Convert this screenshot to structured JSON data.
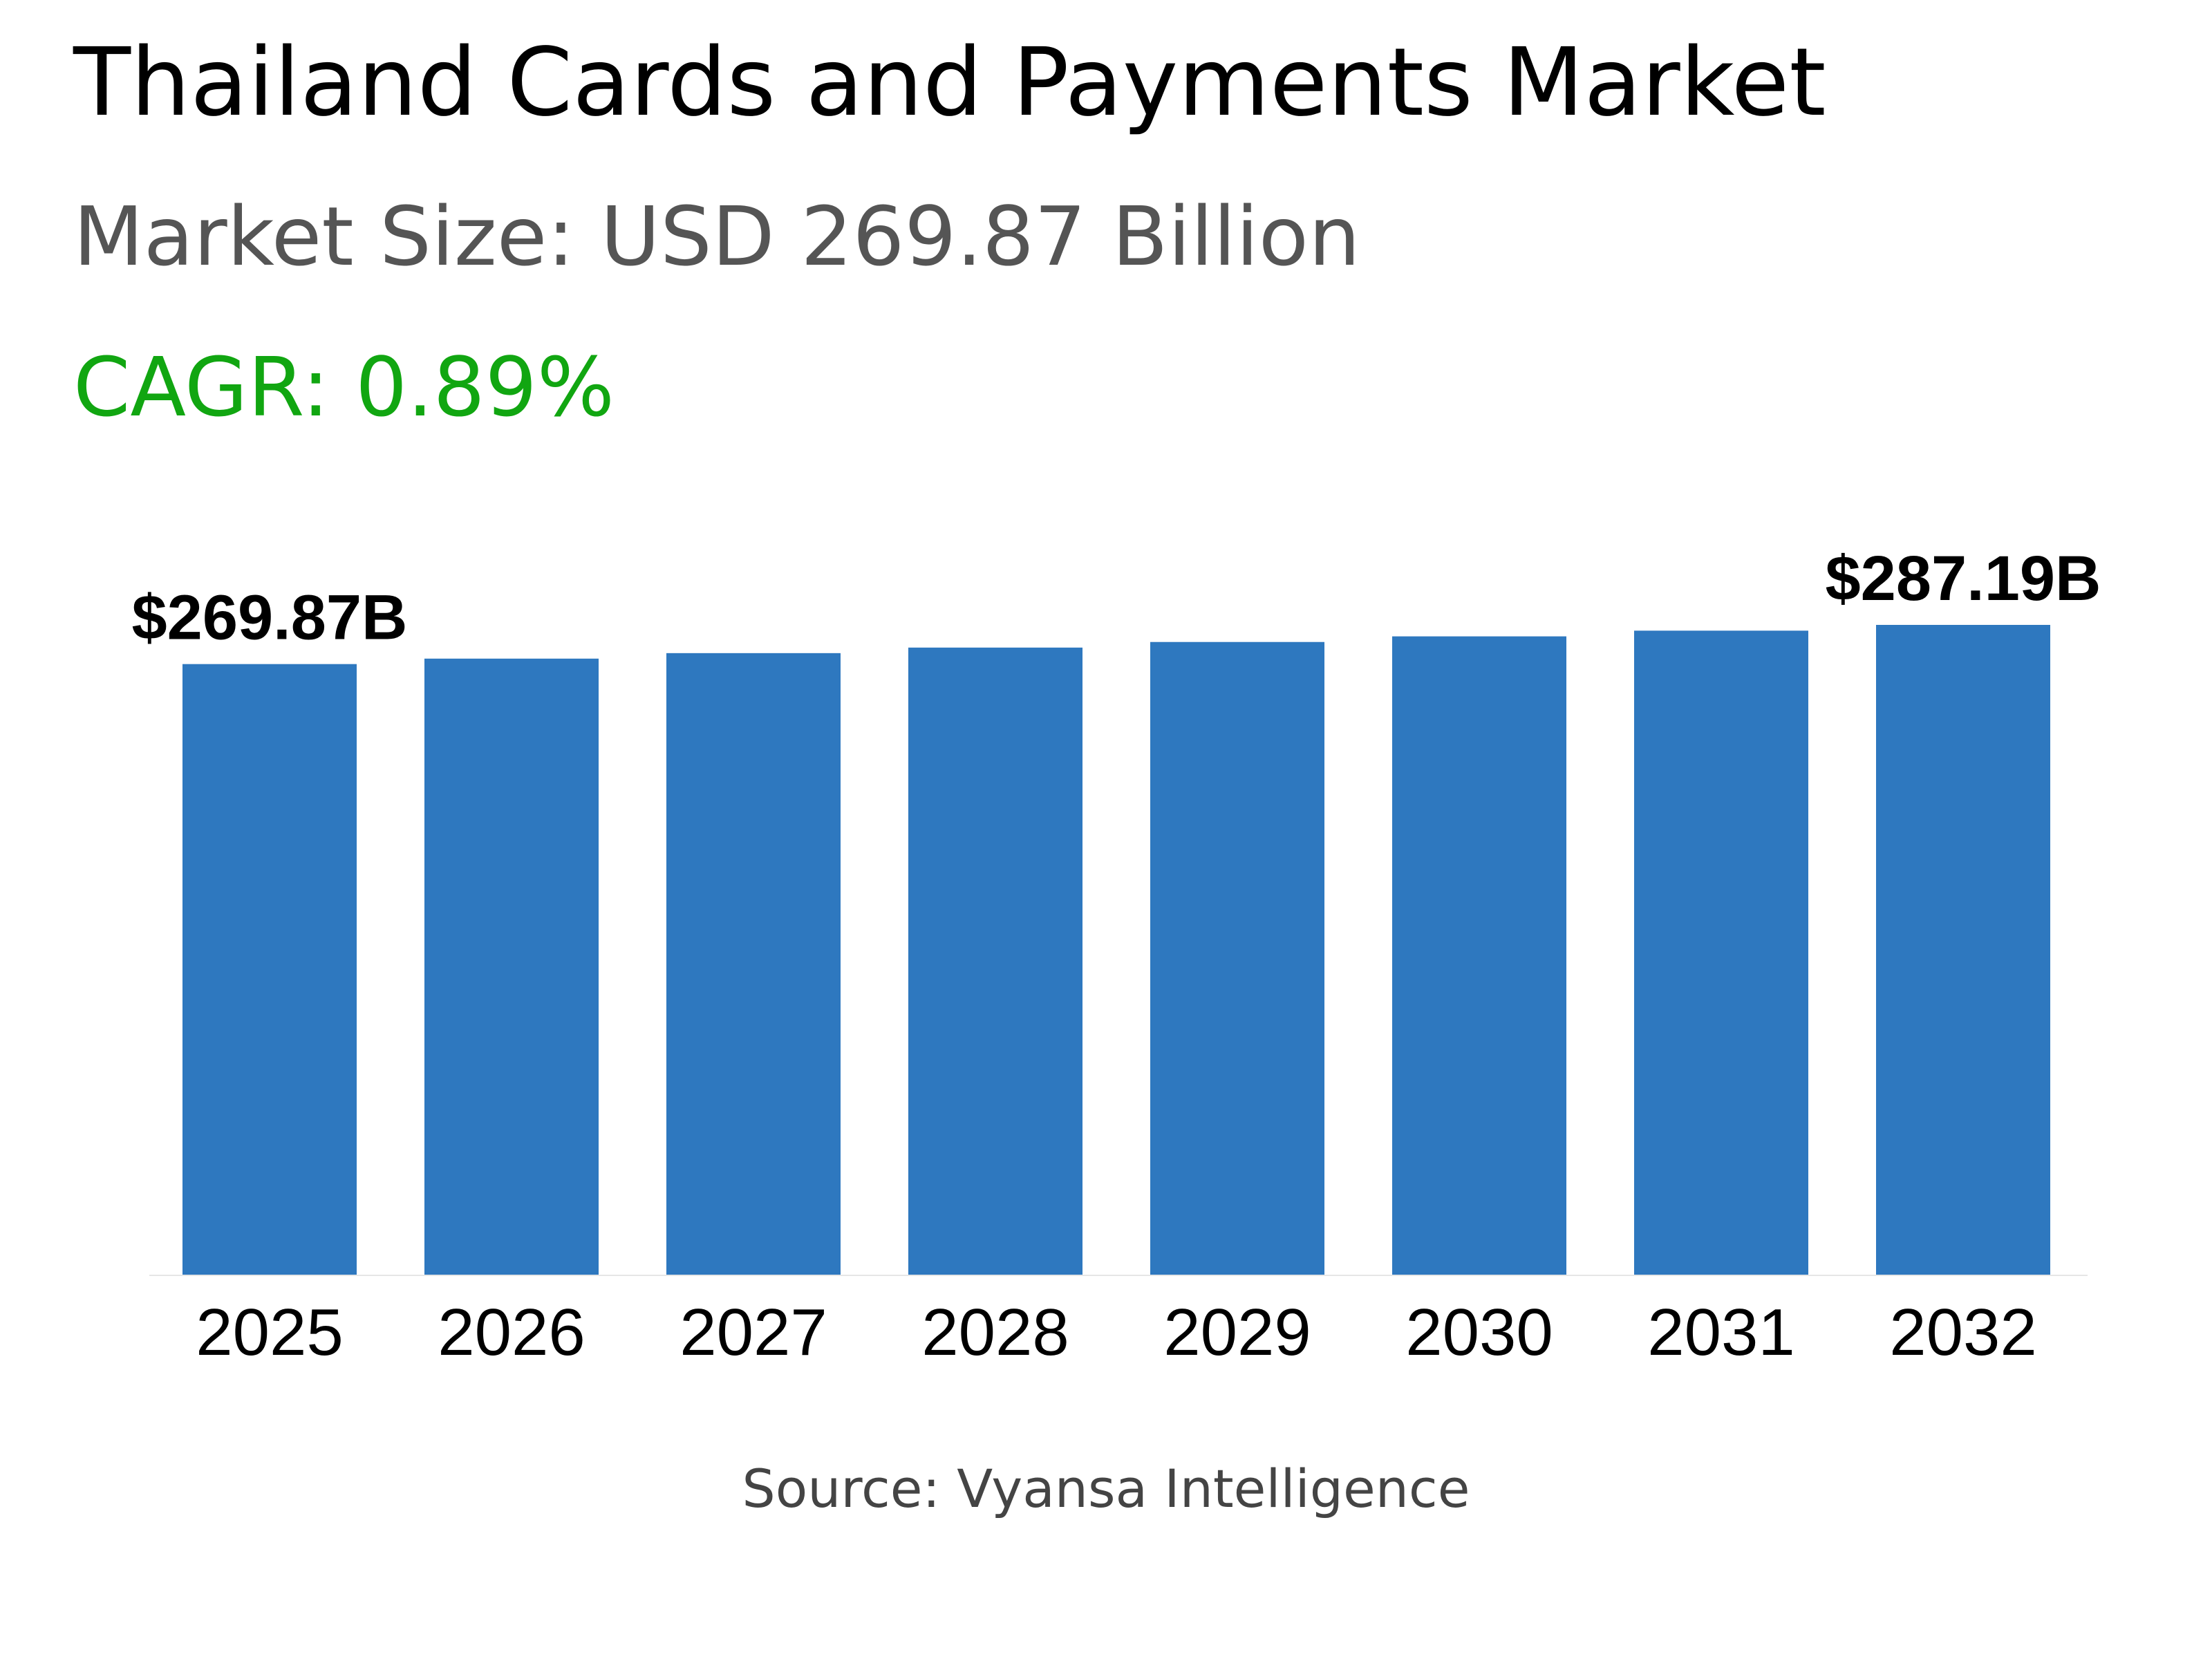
{
  "header": {
    "title": "Thailand Cards and Payments Market",
    "market_size": "Market Size: USD 269.87 Billion",
    "cagr": "CAGR: 0.89%"
  },
  "footer": {
    "source": "Source: Vyansa Intelligence"
  },
  "colors": {
    "bar": "#2e78bf",
    "title": "#000000",
    "subtitle": "#555555",
    "cagr": "#11a611",
    "source": "#444444"
  },
  "chart_data": {
    "type": "bar",
    "categories": [
      "2025",
      "2026",
      "2027",
      "2028",
      "2029",
      "2030",
      "2031",
      "2032"
    ],
    "values": [
      269.87,
      272.28,
      274.71,
      277.16,
      279.63,
      282.12,
      284.64,
      287.19
    ],
    "data_labels": [
      {
        "index": 0,
        "text": "$269.87B"
      },
      {
        "index": 7,
        "text": "$287.19B"
      }
    ],
    "ylim": [
      0,
      287.19
    ],
    "grid": false,
    "legend": "none"
  }
}
